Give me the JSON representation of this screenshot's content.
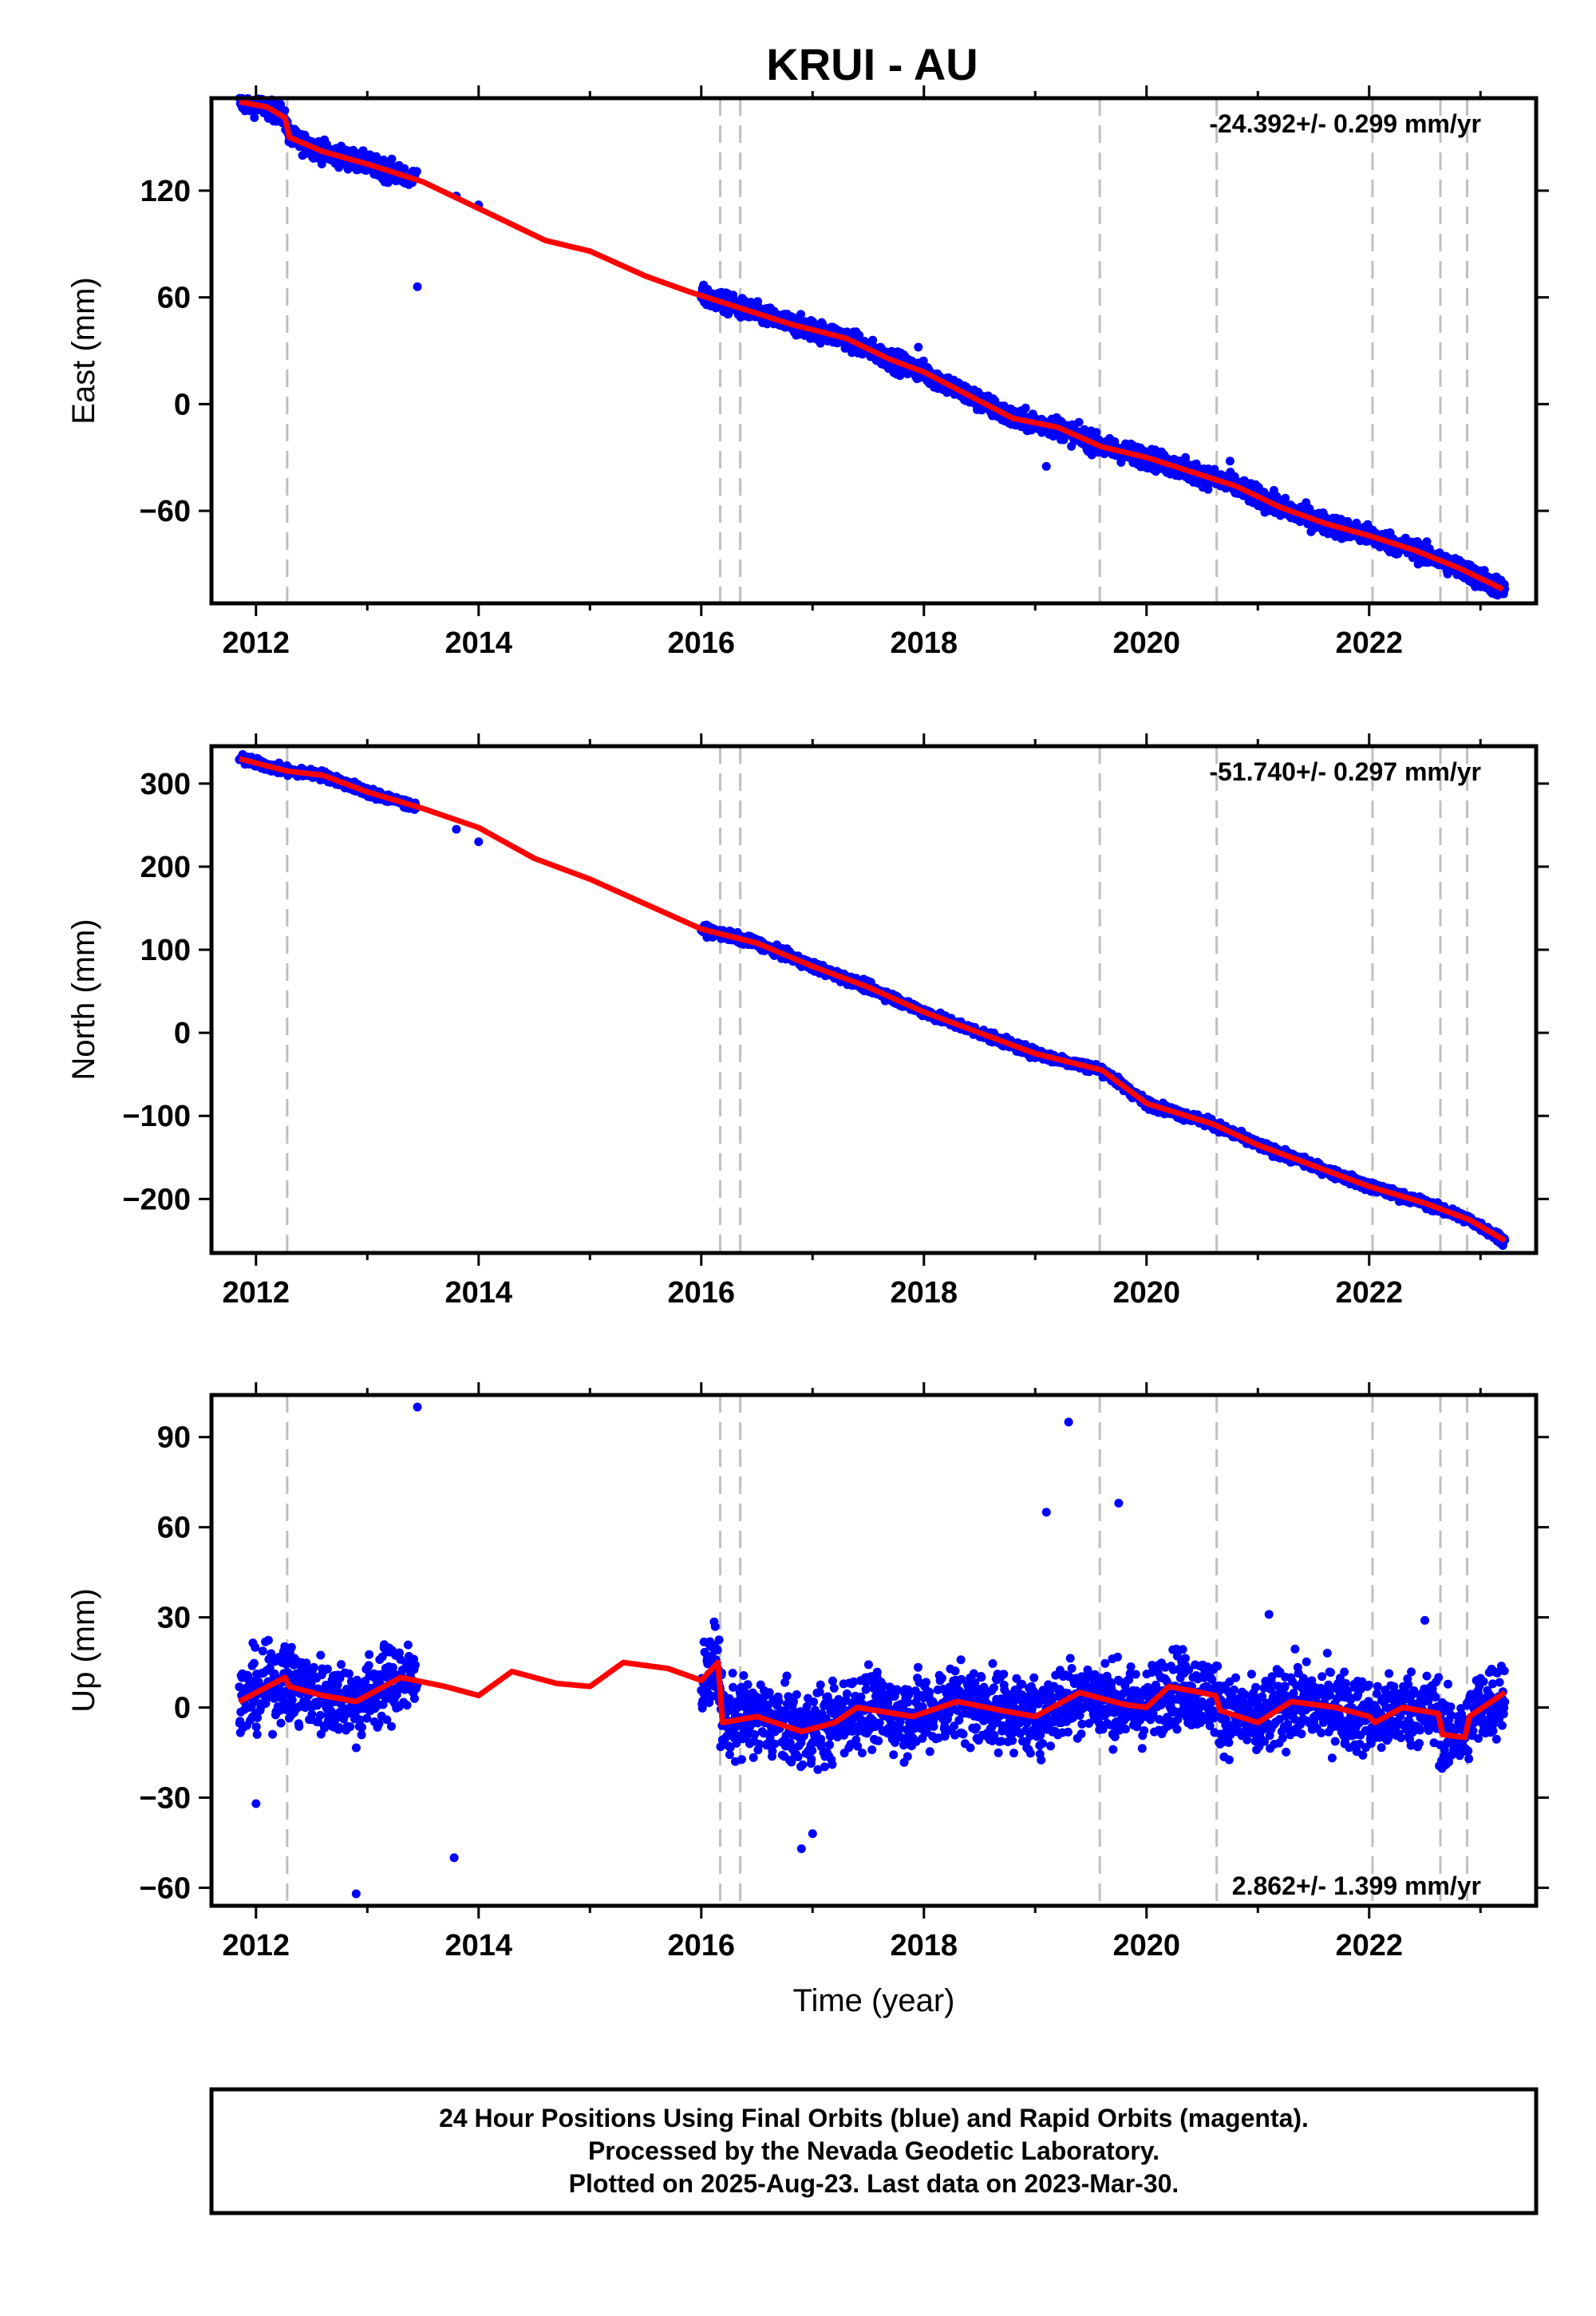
{
  "title": "KRUI - AU",
  "footer": [
    "24 Hour Positions Using Final Orbits (blue) and Rapid Orbits (magenta).",
    "Processed by the Nevada Geodetic Laboratory.",
    "Plotted on 2025-Aug-23. Last data on 2023-Mar-30."
  ],
  "colors": {
    "points": "#0000ff",
    "model": "#ff0000",
    "breaks": "#c0c0c0",
    "axes": "#000000"
  },
  "chart_data": [
    {
      "type": "scatter",
      "name": "east",
      "ylabel": "East (mm)",
      "xlim": [
        2011.6,
        2023.5
      ],
      "ylim": [
        -112,
        172
      ],
      "xticks": [
        2012,
        2014,
        2016,
        2018,
        2020,
        2022
      ],
      "yticks": [
        -60,
        0,
        60,
        120
      ],
      "rate": "-24.392+/- 0.299 mm/yr",
      "rate_pos": "top-right",
      "breaks": [
        2012.28,
        2016.17,
        2016.35,
        2019.58,
        2020.63,
        2022.03,
        2022.64,
        2022.88
      ],
      "segments": [
        [
          2011.85,
          2013.45
        ],
        [
          2016.0,
          2023.22
        ]
      ],
      "model": [
        [
          2011.85,
          170
        ],
        [
          2012.1,
          167
        ],
        [
          2012.26,
          161
        ],
        [
          2012.3,
          150
        ],
        [
          2012.6,
          142
        ],
        [
          2013.0,
          135
        ],
        [
          2013.5,
          125
        ],
        [
          2014.0,
          110
        ],
        [
          2014.6,
          92
        ],
        [
          2015.0,
          86
        ],
        [
          2015.5,
          72
        ],
        [
          2015.9,
          63
        ],
        [
          2016.3,
          55
        ],
        [
          2016.8,
          45
        ],
        [
          2017.3,
          37
        ],
        [
          2017.7,
          25
        ],
        [
          2018.0,
          18
        ],
        [
          2018.4,
          5
        ],
        [
          2018.8,
          -8
        ],
        [
          2019.2,
          -13
        ],
        [
          2019.6,
          -24
        ],
        [
          2020.0,
          -30
        ],
        [
          2020.4,
          -38
        ],
        [
          2020.8,
          -46
        ],
        [
          2021.2,
          -58
        ],
        [
          2021.6,
          -67
        ],
        [
          2022.0,
          -74
        ],
        [
          2022.4,
          -82
        ],
        [
          2022.8,
          -92
        ],
        [
          2023.2,
          -104
        ]
      ],
      "noise": 4,
      "outliers": [
        [
          2013.45,
          66
        ],
        [
          2013.8,
          117
        ],
        [
          2014.0,
          112
        ],
        [
          2017.95,
          32
        ],
        [
          2019.1,
          -35
        ],
        [
          2020.35,
          -30
        ],
        [
          2020.75,
          -32
        ]
      ]
    },
    {
      "type": "scatter",
      "name": "north",
      "ylabel": "North (mm)",
      "xlim": [
        2011.6,
        2023.5
      ],
      "ylim": [
        -265,
        345
      ],
      "xticks": [
        2012,
        2014,
        2016,
        2018,
        2020,
        2022
      ],
      "yticks": [
        -200,
        -100,
        0,
        100,
        200,
        300
      ],
      "rate": "-51.740+/- 0.297 mm/yr",
      "rate_pos": "top-right",
      "breaks": [
        2012.28,
        2016.17,
        2016.35,
        2019.58,
        2020.63,
        2022.03,
        2022.64,
        2022.88
      ],
      "segments": [
        [
          2011.85,
          2013.45
        ],
        [
          2016.0,
          2023.22
        ]
      ],
      "model": [
        [
          2011.85,
          330
        ],
        [
          2012.28,
          315
        ],
        [
          2012.6,
          310
        ],
        [
          2013.0,
          290
        ],
        [
          2013.5,
          270
        ],
        [
          2014.0,
          247
        ],
        [
          2014.5,
          210
        ],
        [
          2015.0,
          185
        ],
        [
          2015.5,
          155
        ],
        [
          2016.0,
          125
        ],
        [
          2016.5,
          108
        ],
        [
          2017.0,
          80
        ],
        [
          2017.5,
          55
        ],
        [
          2018.0,
          25
        ],
        [
          2018.5,
          0
        ],
        [
          2019.0,
          -25
        ],
        [
          2019.6,
          -45
        ],
        [
          2020.0,
          -85
        ],
        [
          2020.6,
          -110
        ],
        [
          2021.0,
          -135
        ],
        [
          2021.5,
          -160
        ],
        [
          2022.0,
          -185
        ],
        [
          2022.5,
          -205
        ],
        [
          2022.9,
          -225
        ],
        [
          2023.22,
          -250
        ]
      ],
      "noise": 4,
      "outliers": [
        [
          2013.8,
          245
        ],
        [
          2014.0,
          230
        ]
      ]
    },
    {
      "type": "scatter",
      "name": "up",
      "ylabel": "Up (mm)",
      "xlabel": "Time (year)",
      "xlim": [
        2011.6,
        2023.5
      ],
      "ylim": [
        -66,
        104
      ],
      "xticks": [
        2012,
        2014,
        2016,
        2018,
        2020,
        2022
      ],
      "yticks": [
        -60,
        -30,
        0,
        30,
        60,
        90
      ],
      "rate": "2.862+/- 1.399 mm/yr",
      "rate_pos": "bottom-right",
      "breaks": [
        2012.28,
        2016.17,
        2016.35,
        2019.58,
        2020.63,
        2022.03,
        2022.64,
        2022.88
      ],
      "segments": [
        [
          2011.85,
          2013.45
        ],
        [
          2016.0,
          2023.22
        ]
      ],
      "model": [
        [
          2011.85,
          2
        ],
        [
          2012.26,
          10
        ],
        [
          2012.3,
          7
        ],
        [
          2012.6,
          4
        ],
        [
          2012.9,
          2
        ],
        [
          2013.3,
          10
        ],
        [
          2013.7,
          7
        ],
        [
          2014.0,
          4
        ],
        [
          2014.3,
          12
        ],
        [
          2014.7,
          8
        ],
        [
          2015.0,
          7
        ],
        [
          2015.3,
          15
        ],
        [
          2015.7,
          13
        ],
        [
          2016.0,
          9
        ],
        [
          2016.15,
          15
        ],
        [
          2016.19,
          -5
        ],
        [
          2016.5,
          -3
        ],
        [
          2016.9,
          -8
        ],
        [
          2017.2,
          -5
        ],
        [
          2017.4,
          0
        ],
        [
          2017.9,
          -3
        ],
        [
          2018.3,
          2
        ],
        [
          2018.7,
          -1
        ],
        [
          2019.0,
          -3
        ],
        [
          2019.4,
          5
        ],
        [
          2019.8,
          1
        ],
        [
          2020.0,
          0
        ],
        [
          2020.2,
          7
        ],
        [
          2020.62,
          4
        ],
        [
          2020.66,
          -1
        ],
        [
          2021.0,
          -5
        ],
        [
          2021.3,
          2
        ],
        [
          2021.7,
          0
        ],
        [
          2022.0,
          -3
        ],
        [
          2022.05,
          -5
        ],
        [
          2022.3,
          0
        ],
        [
          2022.62,
          -2
        ],
        [
          2022.66,
          -9
        ],
        [
          2022.86,
          -10
        ],
        [
          2022.9,
          -3
        ],
        [
          2023.22,
          5
        ]
      ],
      "noise": 9,
      "outliers": [
        [
          2013.45,
          100
        ],
        [
          2013.78,
          -50
        ],
        [
          2012.9,
          -62
        ],
        [
          2012.0,
          -32
        ],
        [
          2019.3,
          95
        ],
        [
          2019.75,
          68
        ],
        [
          2019.1,
          65
        ],
        [
          2016.9,
          -47
        ],
        [
          2017.0,
          -42
        ],
        [
          2021.1,
          31
        ],
        [
          2022.5,
          29
        ],
        [
          2016.1,
          20
        ]
      ]
    }
  ]
}
